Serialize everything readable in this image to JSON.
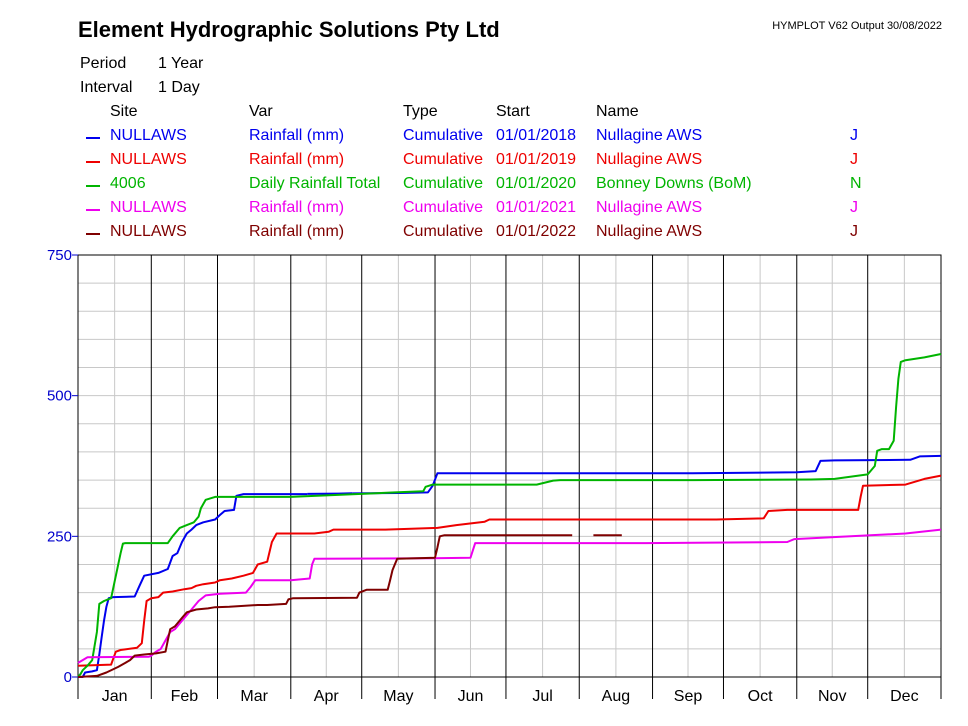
{
  "header": {
    "company": "Element Hydrographic Solutions Pty Ltd",
    "output_info": "HYMPLOT V62  Output 30/08/2022",
    "period_label": "Period",
    "period_value": "1 Year",
    "interval_label": "Interval",
    "interval_value": "1 Day"
  },
  "legend": {
    "headers": {
      "site": "Site",
      "var": "Var",
      "type": "Type",
      "start": "Start",
      "name": "Name"
    },
    "rows": [
      {
        "site": "NULLAWS",
        "var": "Rainfall (mm)",
        "type": "Cumulative",
        "start": "01/01/2018",
        "name": "Nullagine AWS",
        "flag": "J",
        "color": "#0000ee"
      },
      {
        "site": "NULLAWS",
        "var": "Rainfall (mm)",
        "type": "Cumulative",
        "start": "01/01/2019",
        "name": "Nullagine AWS",
        "flag": "J",
        "color": "#ee0000"
      },
      {
        "site": "4006",
        "var": "Daily Rainfall Total",
        "type": "Cumulative",
        "start": "01/01/2020",
        "name": "Bonney Downs (BoM)",
        "flag": "N",
        "color": "#00b400"
      },
      {
        "site": "NULLAWS",
        "var": "Rainfall (mm)",
        "type": "Cumulative",
        "start": "01/01/2021",
        "name": "Nullagine AWS",
        "flag": "J",
        "color": "#ee00ee"
      },
      {
        "site": "NULLAWS",
        "var": "Rainfall (mm)",
        "type": "Cumulative",
        "start": "01/01/2022",
        "name": "Nullagine AWS",
        "flag": "J",
        "color": "#7f0000"
      }
    ]
  },
  "chart_data": {
    "type": "line",
    "title": "",
    "xlabel": "",
    "ylabel": "",
    "xlim": [
      0,
      365
    ],
    "ylim": [
      0,
      750
    ],
    "y_ticks": [
      0,
      250,
      500,
      750
    ],
    "y_tick_labels": [
      "0",
      "250",
      "500",
      "750"
    ],
    "y_tick_color": "#0000cc",
    "month_labels": [
      "Jan",
      "Feb",
      "Mar",
      "Apr",
      "May",
      "Jun",
      "Jul",
      "Aug",
      "Sep",
      "Oct",
      "Nov",
      "Dec"
    ],
    "month_starts": [
      0,
      31,
      59,
      90,
      120,
      151,
      181,
      212,
      243,
      273,
      304,
      334
    ],
    "grid": true,
    "series": [
      {
        "name": "NULLAWS 2018",
        "color": "#0000ee",
        "points": [
          [
            0,
            0
          ],
          [
            2,
            0
          ],
          [
            3,
            8
          ],
          [
            6,
            10
          ],
          [
            8,
            12
          ],
          [
            9,
            40
          ],
          [
            10,
            70
          ],
          [
            11,
            100
          ],
          [
            12,
            125
          ],
          [
            13,
            140
          ],
          [
            15,
            142
          ],
          [
            24,
            143
          ],
          [
            26,
            162
          ],
          [
            28,
            180
          ],
          [
            34,
            185
          ],
          [
            38,
            192
          ],
          [
            40,
            215
          ],
          [
            42,
            220
          ],
          [
            44,
            240
          ],
          [
            46,
            255
          ],
          [
            48,
            262
          ],
          [
            50,
            270
          ],
          [
            53,
            275
          ],
          [
            58,
            280
          ],
          [
            60,
            288
          ],
          [
            62,
            295
          ],
          [
            66,
            297
          ],
          [
            67,
            322
          ],
          [
            70,
            325
          ],
          [
            96,
            325
          ],
          [
            110,
            326
          ],
          [
            136,
            327
          ],
          [
            148,
            328
          ],
          [
            150,
            340
          ],
          [
            152,
            362
          ],
          [
            170,
            362
          ],
          [
            260,
            362
          ],
          [
            284,
            363
          ],
          [
            304,
            364
          ],
          [
            312,
            366
          ],
          [
            314,
            384
          ],
          [
            320,
            385
          ],
          [
            352,
            386
          ],
          [
            356,
            392
          ],
          [
            365,
            393
          ]
        ],
        "gaps": [
          [
            97,
            116
          ]
        ]
      },
      {
        "name": "NULLAWS 2019",
        "color": "#ee0000",
        "points": [
          [
            0,
            20
          ],
          [
            14,
            22
          ],
          [
            16,
            45
          ],
          [
            18,
            48
          ],
          [
            25,
            52
          ],
          [
            27,
            60
          ],
          [
            28,
            100
          ],
          [
            29,
            135
          ],
          [
            31,
            140
          ],
          [
            34,
            142
          ],
          [
            36,
            150
          ],
          [
            40,
            152
          ],
          [
            45,
            156
          ],
          [
            48,
            158
          ],
          [
            50,
            162
          ],
          [
            53,
            165
          ],
          [
            58,
            168
          ],
          [
            60,
            172
          ],
          [
            65,
            175
          ],
          [
            70,
            180
          ],
          [
            74,
            185
          ],
          [
            76,
            200
          ],
          [
            80,
            205
          ],
          [
            82,
            240
          ],
          [
            84,
            255
          ],
          [
            90,
            255
          ],
          [
            100,
            255
          ],
          [
            106,
            258
          ],
          [
            108,
            262
          ],
          [
            130,
            262
          ],
          [
            152,
            265
          ],
          [
            160,
            270
          ],
          [
            172,
            276
          ],
          [
            174,
            280
          ],
          [
            181,
            280
          ],
          [
            270,
            280
          ],
          [
            290,
            282
          ],
          [
            292,
            295
          ],
          [
            300,
            297
          ],
          [
            330,
            297
          ],
          [
            331,
            320
          ],
          [
            332,
            340
          ],
          [
            350,
            342
          ],
          [
            358,
            352
          ],
          [
            365,
            358
          ]
        ]
      },
      {
        "name": "4006 2020",
        "color": "#00b400",
        "points": [
          [
            0,
            0
          ],
          [
            1,
            5
          ],
          [
            2,
            12
          ],
          [
            4,
            20
          ],
          [
            6,
            30
          ],
          [
            8,
            80
          ],
          [
            9,
            130
          ],
          [
            11,
            135
          ],
          [
            14,
            140
          ],
          [
            18,
            220
          ],
          [
            19,
            237
          ],
          [
            20,
            238
          ],
          [
            38,
            238
          ],
          [
            40,
            250
          ],
          [
            43,
            265
          ],
          [
            46,
            270
          ],
          [
            49,
            275
          ],
          [
            51,
            285
          ],
          [
            52,
            300
          ],
          [
            54,
            315
          ],
          [
            58,
            320
          ],
          [
            90,
            320
          ],
          [
            134,
            328
          ],
          [
            146,
            330
          ],
          [
            147,
            338
          ],
          [
            150,
            342
          ],
          [
            194,
            342
          ],
          [
            201,
            349
          ],
          [
            204,
            350
          ],
          [
            260,
            350
          ],
          [
            310,
            351
          ],
          [
            320,
            352
          ],
          [
            334,
            360
          ],
          [
            337,
            375
          ],
          [
            338,
            402
          ],
          [
            340,
            405
          ],
          [
            343,
            405
          ],
          [
            345,
            420
          ],
          [
            346,
            480
          ],
          [
            347,
            530
          ],
          [
            348,
            560
          ],
          [
            350,
            563
          ],
          [
            358,
            568
          ],
          [
            365,
            574
          ]
        ]
      },
      {
        "name": "NULLAWS 2021",
        "color": "#ee00ee",
        "points": [
          [
            0,
            25
          ],
          [
            2,
            30
          ],
          [
            4,
            35
          ],
          [
            30,
            36
          ],
          [
            31,
            38
          ],
          [
            33,
            45
          ],
          [
            35,
            50
          ],
          [
            37,
            65
          ],
          [
            39,
            80
          ],
          [
            41,
            85
          ],
          [
            43,
            95
          ],
          [
            44,
            100
          ],
          [
            46,
            110
          ],
          [
            48,
            120
          ],
          [
            51,
            135
          ],
          [
            54,
            145
          ],
          [
            60,
            148
          ],
          [
            71,
            150
          ],
          [
            73,
            160
          ],
          [
            75,
            172
          ],
          [
            90,
            172
          ],
          [
            98,
            175
          ],
          [
            99,
            200
          ],
          [
            100,
            210
          ],
          [
            150,
            211
          ],
          [
            166,
            212
          ],
          [
            168,
            238
          ],
          [
            174,
            238
          ],
          [
            240,
            238
          ],
          [
            300,
            240
          ],
          [
            303,
            245
          ],
          [
            350,
            255
          ],
          [
            365,
            262
          ]
        ]
      },
      {
        "name": "NULLAWS 2022",
        "color": "#7f0000",
        "points": [
          [
            0,
            0
          ],
          [
            8,
            2
          ],
          [
            12,
            8
          ],
          [
            17,
            18
          ],
          [
            20,
            25
          ],
          [
            22,
            30
          ],
          [
            24,
            38
          ],
          [
            28,
            40
          ],
          [
            33,
            42
          ],
          [
            37,
            45
          ],
          [
            38,
            65
          ],
          [
            39,
            85
          ],
          [
            41,
            90
          ],
          [
            44,
            105
          ],
          [
            46,
            115
          ],
          [
            50,
            120
          ],
          [
            55,
            122
          ],
          [
            58,
            124
          ],
          [
            64,
            125
          ],
          [
            76,
            128
          ],
          [
            80,
            128
          ],
          [
            88,
            130
          ],
          [
            89,
            138
          ],
          [
            91,
            140
          ],
          [
            118,
            141
          ],
          [
            119,
            150
          ],
          [
            122,
            155
          ],
          [
            131,
            155
          ],
          [
            132,
            172
          ],
          [
            133,
            190
          ],
          [
            134,
            200
          ],
          [
            135,
            210
          ],
          [
            151,
            212
          ],
          [
            152,
            230
          ],
          [
            153,
            250
          ],
          [
            155,
            252
          ],
          [
            230,
            252
          ]
        ],
        "gaps": [
          [
            209,
            218
          ]
        ]
      }
    ]
  }
}
